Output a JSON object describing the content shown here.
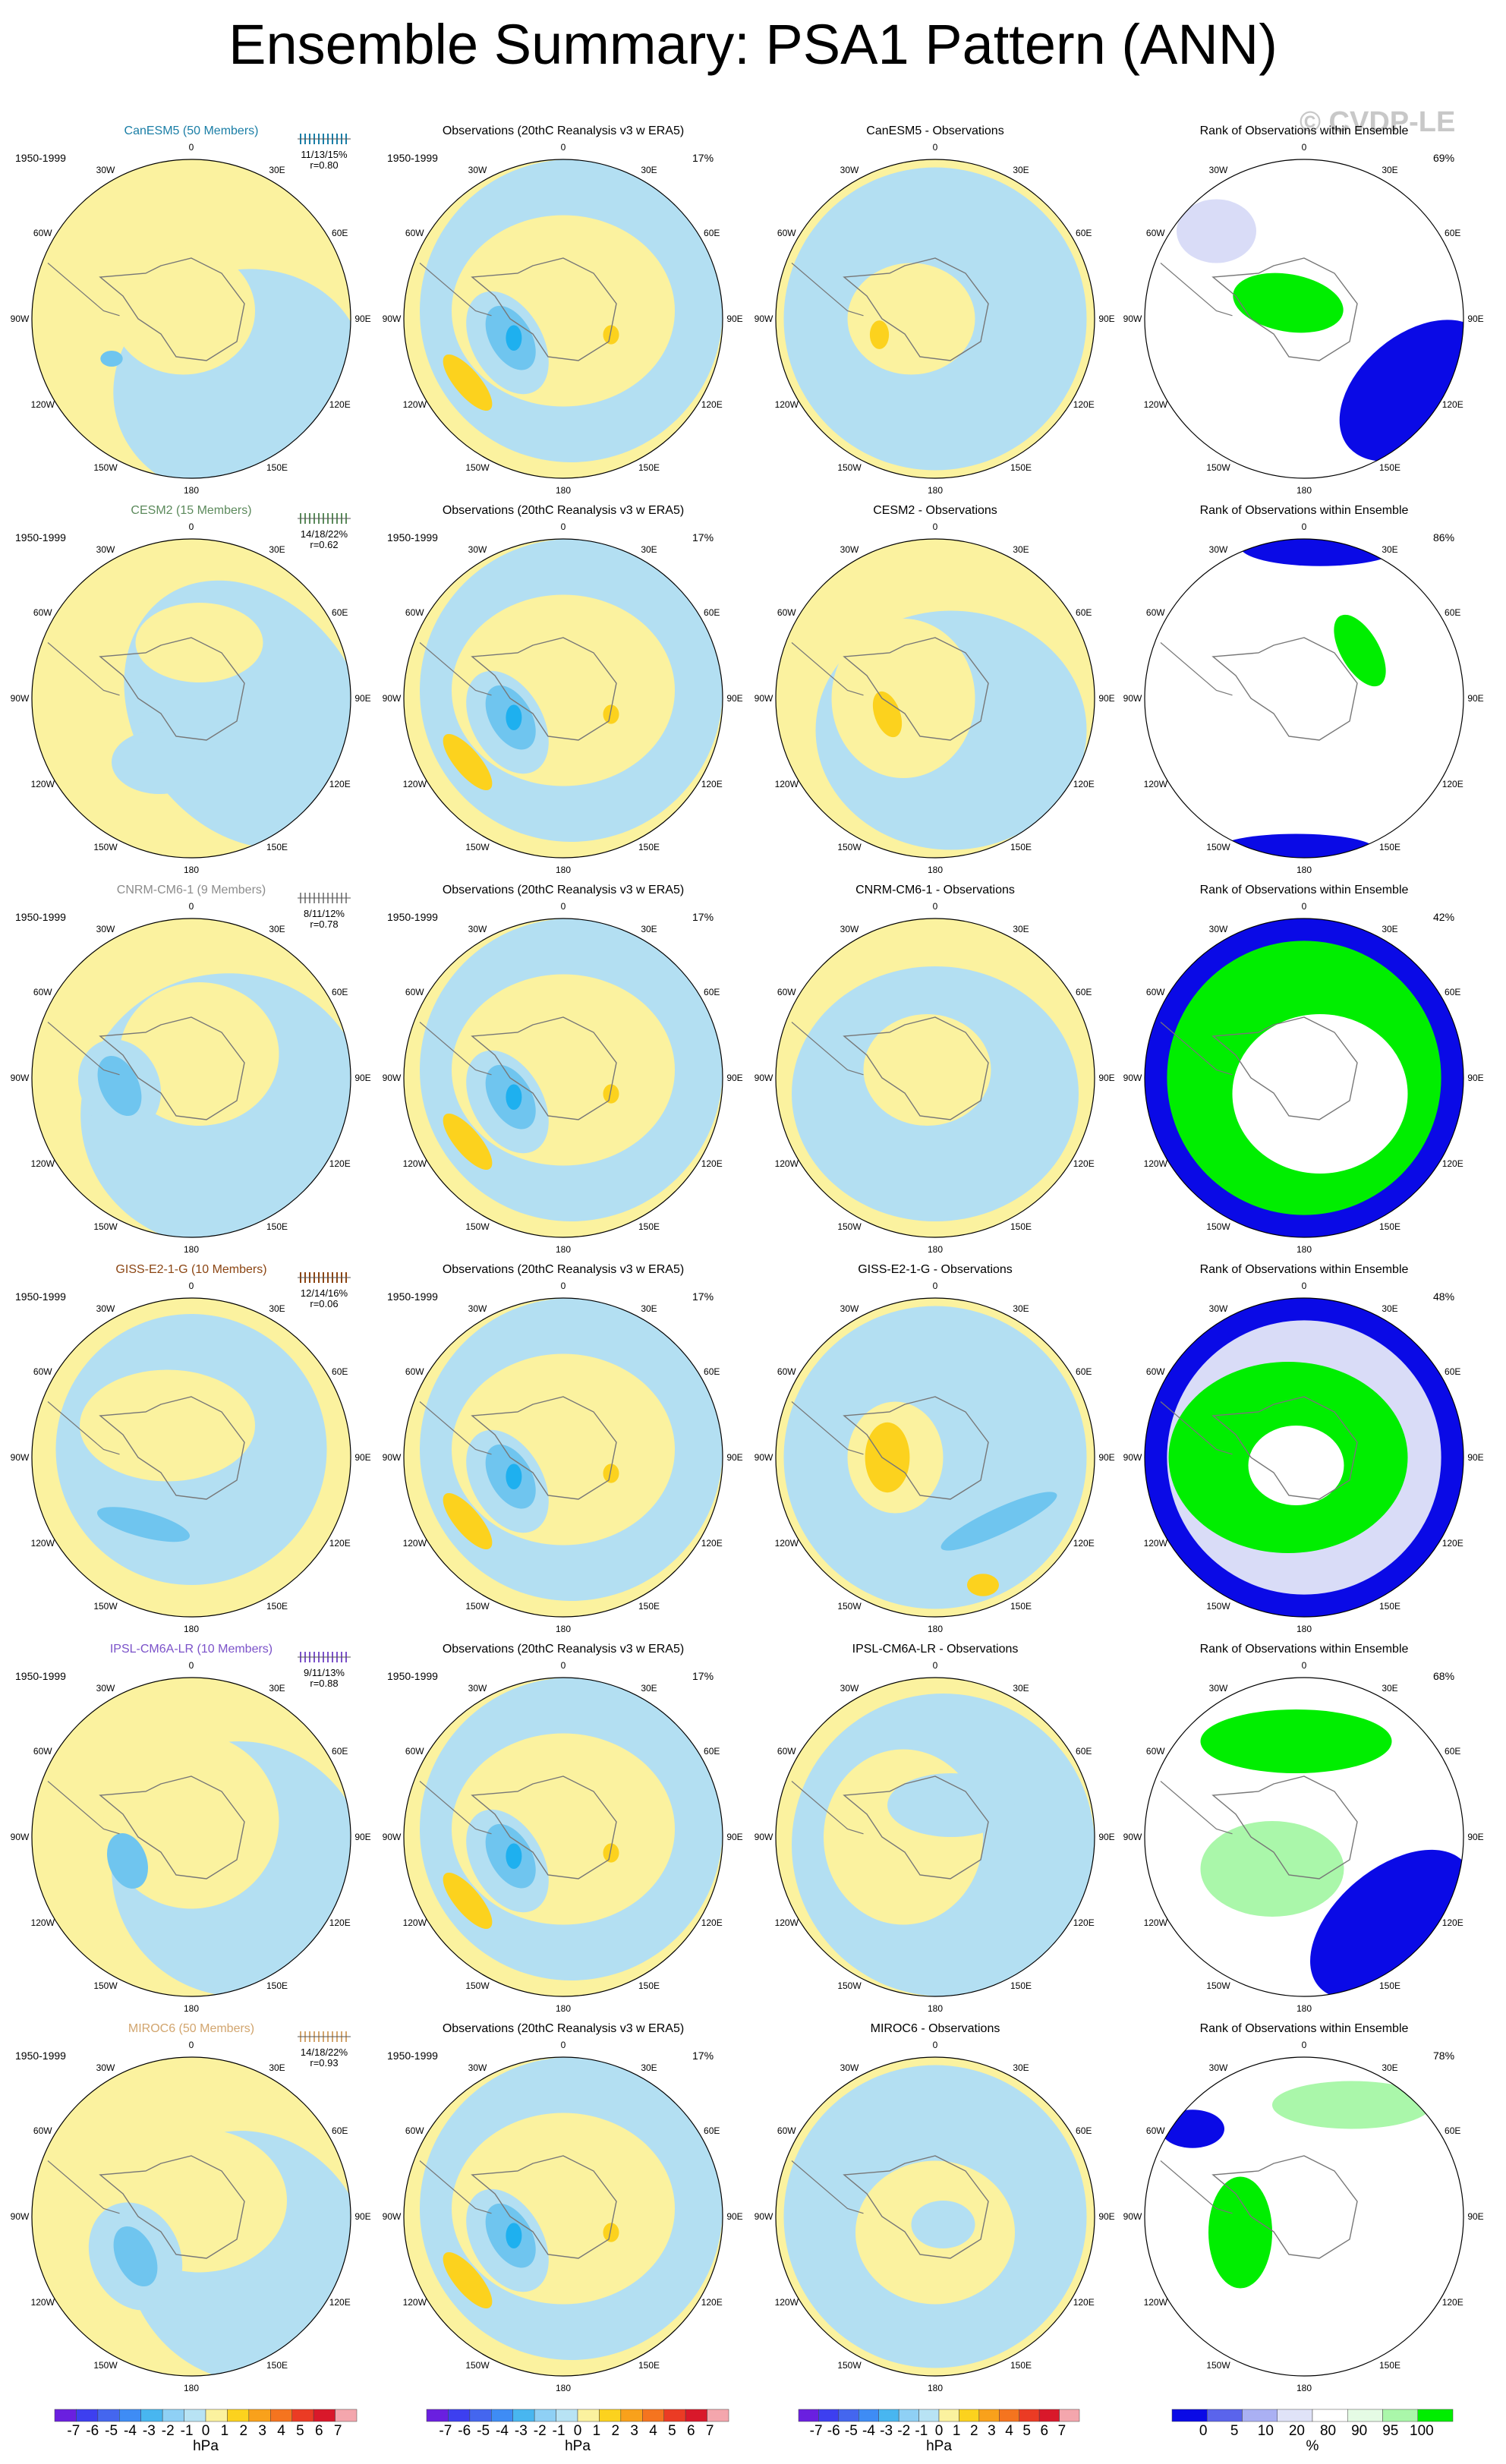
{
  "title": "Ensemble Summary: PSA1 Pattern (ANN)",
  "watermark": "© CVDP-LE",
  "colors": {
    "pos1": "#fbf29f",
    "pos2": "#fcd21e",
    "neg1": "#b3dff2",
    "neg2": "#6fc5ef",
    "neg3": "#1eb0ef",
    "rank_low": "#0a0ae6",
    "rank_mid": "#d9dcf7",
    "rank_high": "#00ee00",
    "rank_hi2": "#aaf7aa",
    "land": "#777777"
  },
  "rows": [
    {
      "model": "CanESM5 (50 Members)",
      "model_color": "#1a7ea6",
      "period": "1950-1999",
      "stats": "11/13/15%",
      "r": "r=0.80",
      "obs_title": "Observations (20thC Reanalysis v3 w ERA5)",
      "obs_pct": "17%",
      "diff_title": "CanESM5 - Observations",
      "rank_title": "Rank of Observations within Ensemble",
      "rank_pct": "69%"
    },
    {
      "model": "CESM2 (15 Members)",
      "model_color": "#5c8a5c",
      "period": "1950-1999",
      "stats": "14/18/22%",
      "r": "r=0.62",
      "obs_title": "Observations (20thC Reanalysis v3 w ERA5)",
      "obs_pct": "17%",
      "diff_title": "CESM2 - Observations",
      "rank_title": "Rank of Observations within Ensemble",
      "rank_pct": "86%"
    },
    {
      "model": "CNRM-CM6-1 (9 Members)",
      "model_color": "#8c8c8c",
      "period": "1950-1999",
      "stats": "8/11/12%",
      "r": "r=0.78",
      "obs_title": "Observations (20thC Reanalysis v3 w ERA5)",
      "obs_pct": "17%",
      "diff_title": "CNRM-CM6-1 - Observations",
      "rank_title": "Rank of Observations within Ensemble",
      "rank_pct": "42%"
    },
    {
      "model": "GISS-E2-1-G (10 Members)",
      "model_color": "#8b4513",
      "period": "1950-1999",
      "stats": "12/14/16%",
      "r": "r=0.06",
      "obs_title": "Observations (20thC Reanalysis v3 w ERA5)",
      "obs_pct": "17%",
      "diff_title": "GISS-E2-1-G - Observations",
      "rank_title": "Rank of Observations within Ensemble",
      "rank_pct": "48%"
    },
    {
      "model": "IPSL-CM6A-LR (10 Members)",
      "model_color": "#7b52c9",
      "period": "1950-1999",
      "stats": "9/11/13%",
      "r": "r=0.88",
      "obs_title": "Observations (20thC Reanalysis v3 w ERA5)",
      "obs_pct": "17%",
      "diff_title": "IPSL-CM6A-LR - Observations",
      "rank_title": "Rank of Observations within Ensemble",
      "rank_pct": "68%"
    },
    {
      "model": "MIROC6 (50 Members)",
      "model_color": "#d2a56e",
      "period": "1950-1999",
      "stats": "14/18/22%",
      "r": "r=0.93",
      "obs_title": "Observations (20thC Reanalysis v3 w ERA5)",
      "obs_pct": "17%",
      "diff_title": "MIROC6 - Observations",
      "rank_title": "Rank of Observations within Ensemble",
      "rank_pct": "78%"
    }
  ],
  "lon_labels": [
    "0",
    "30E",
    "60E",
    "90E",
    "120E",
    "150E",
    "180",
    "150W",
    "120W",
    "90W",
    "60W",
    "30W"
  ],
  "label_bar": {
    "ticks": [
      "-7",
      "-6",
      "-5",
      "-4",
      "-3",
      "-2",
      "-1",
      "0",
      "1",
      "2",
      "3",
      "4",
      "5",
      "6",
      "7"
    ],
    "unit": "hPa",
    "colors": [
      "#6a1fe0",
      "#3d3ff0",
      "#4466ef",
      "#3e8cf5",
      "#48b6f0",
      "#8fd0f5",
      "#b8e3f4",
      "#fbf29f",
      "#fcd21e",
      "#f9a11b",
      "#f5741f",
      "#eb3b24",
      "#d9182a",
      "#f4a6ad"
    ]
  },
  "rank_bar": {
    "ticks": [
      "0",
      "5",
      "10",
      "20",
      "80",
      "90",
      "95",
      "100"
    ],
    "unit": "%",
    "colors": [
      "#0a0ae6",
      "#5a64ec",
      "#aab0f3",
      "#e0e3f8",
      "#ffffff",
      "#e5fbe5",
      "#aaf7aa",
      "#00ee00"
    ]
  }
}
